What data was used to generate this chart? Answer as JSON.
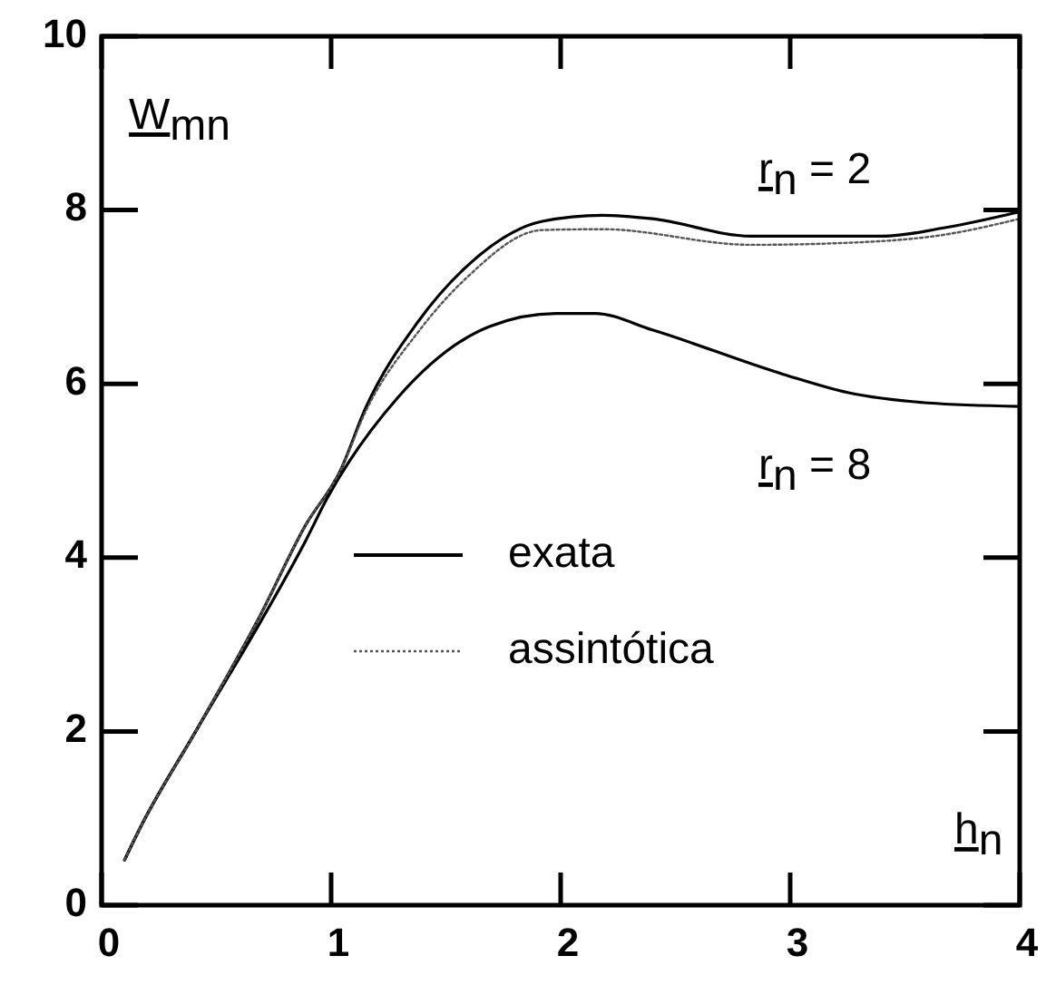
{
  "chart_data": {
    "type": "line",
    "xlabel": "h$_{n}$",
    "ylabel": "W$_{mn}$",
    "xlim": [
      0,
      4
    ],
    "ylim": [
      0,
      10
    ],
    "xticks": [
      0,
      1,
      2,
      3,
      4
    ],
    "yticks": [
      0,
      2,
      4,
      6,
      8,
      10
    ],
    "legend": "left",
    "grid": false,
    "annotations": [
      "r$_{n}$ = 2",
      "r$_{n}$ = 8"
    ],
    "series": [
      {
        "name": "exata",
        "color": "#000000",
        "line_style": "solid",
        "x": [
          0.1,
          0.17,
          0.41,
          0.69,
          0.89,
          1.04,
          1.15,
          1.38,
          1.59,
          1.92,
          2.18,
          2.4,
          2.83,
          3.4,
          3.68,
          4.0
        ],
        "values": [
          0.52,
          0.9,
          2.0,
          3.33,
          4.38,
          5.0,
          5.72,
          6.72,
          7.35,
          7.87,
          7.94,
          7.9,
          7.7,
          7.7,
          7.8,
          7.98
        ]
      },
      {
        "color": "#000000",
        "line_style": "solid",
        "x": [
          0.1,
          0.17,
          0.41,
          0.69,
          0.89,
          0.98,
          1.29,
          1.69,
          1.98,
          2.15,
          2.4,
          2.97,
          3.25,
          3.6,
          4.0
        ],
        "values": [
          0.52,
          0.9,
          2.0,
          3.25,
          4.2,
          4.67,
          5.84,
          6.66,
          6.81,
          6.81,
          6.62,
          6.11,
          5.9,
          5.78,
          5.74
        ]
      },
      {
        "name": "assintótica",
        "color": "#555555",
        "line_style": "dotted",
        "x": [
          0.1,
          0.17,
          0.41,
          0.69,
          0.89,
          1.04,
          1.15,
          1.38,
          1.59,
          1.92,
          2.18,
          2.83,
          3.22,
          3.68,
          4.0
        ],
        "values": [
          0.52,
          0.9,
          2.0,
          3.33,
          4.38,
          5.0,
          5.68,
          6.6,
          7.22,
          7.77,
          7.78,
          7.6,
          7.62,
          7.72,
          7.9
        ]
      }
    ]
  }
}
